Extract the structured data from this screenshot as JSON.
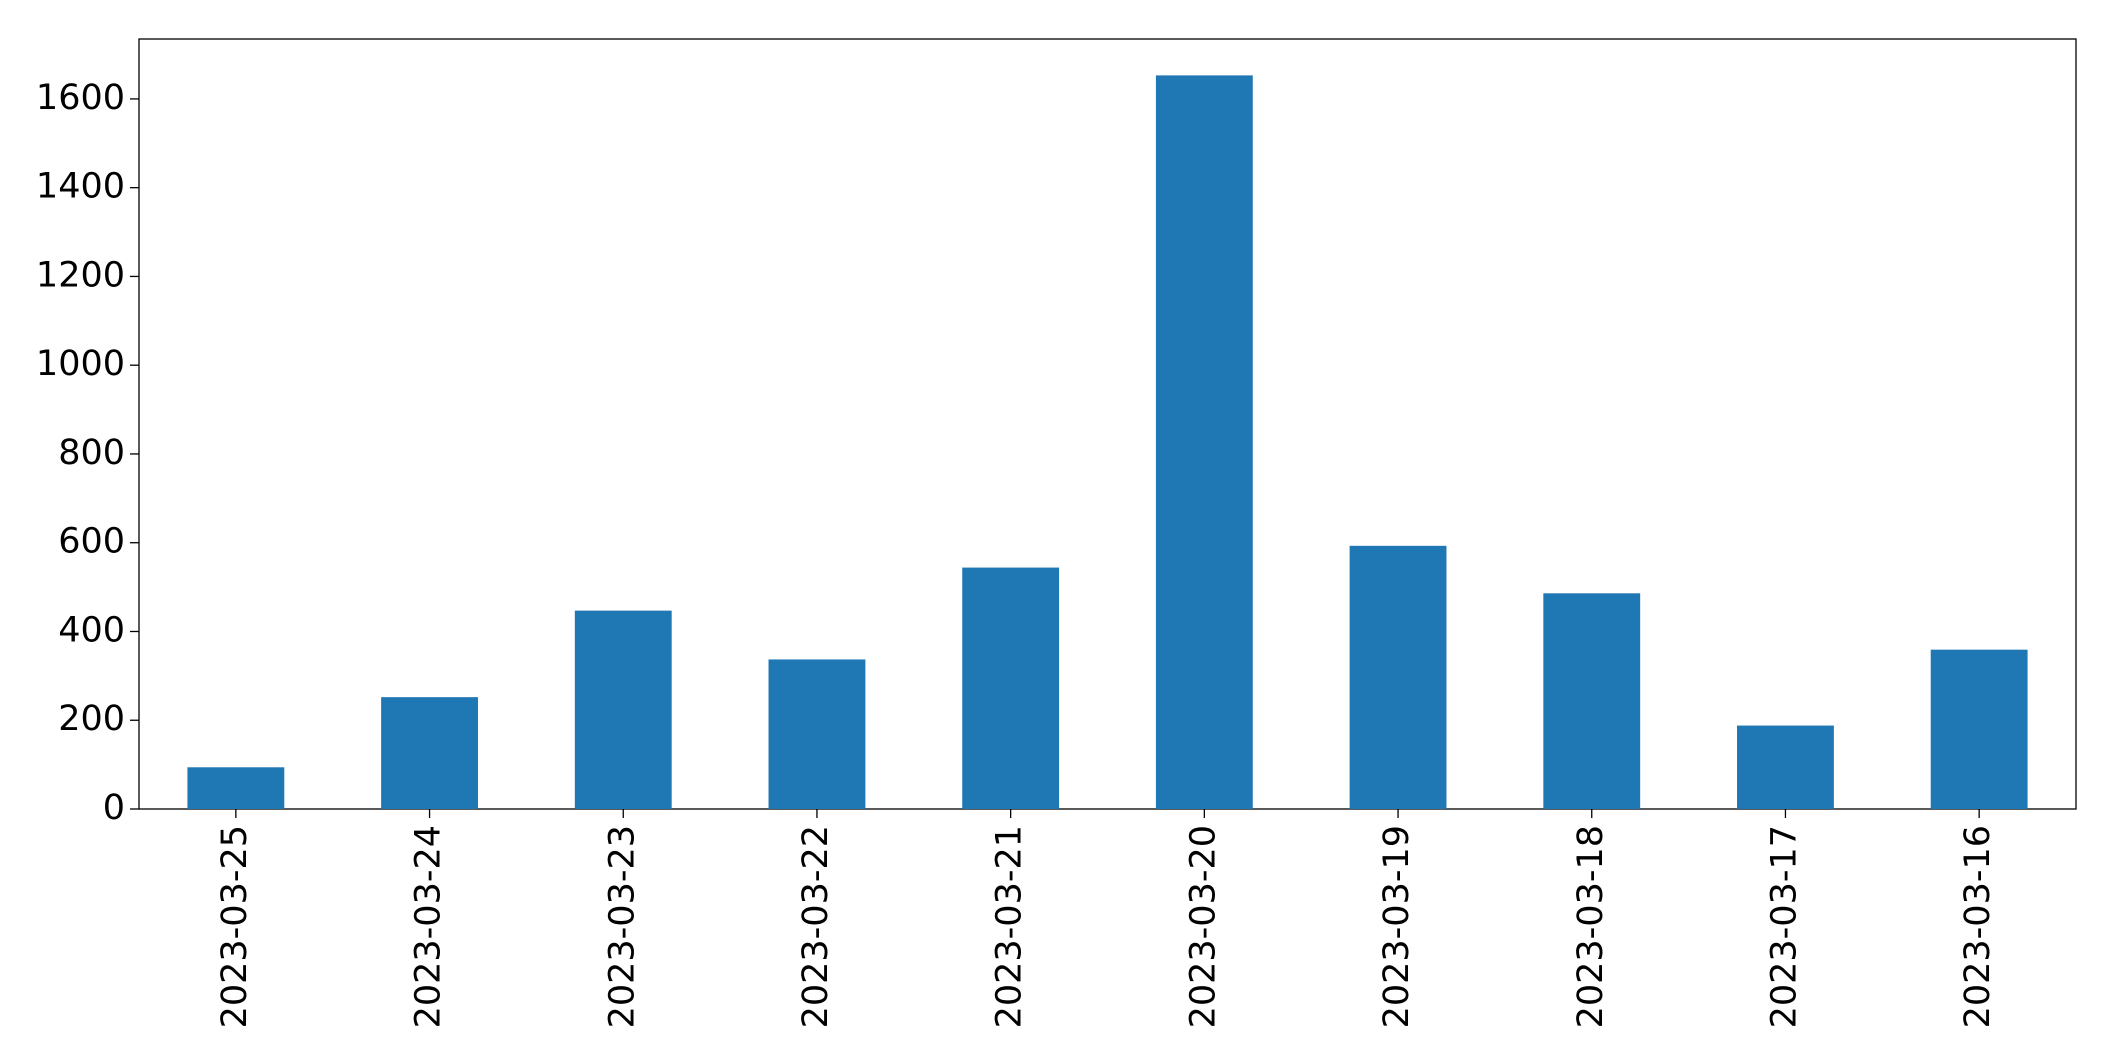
{
  "chart_data": {
    "type": "bar",
    "categories": [
      "2023-03-25",
      "2023-03-24",
      "2023-03-23",
      "2023-03-22",
      "2023-03-21",
      "2023-03-20",
      "2023-03-19",
      "2023-03-18",
      "2023-03-17",
      "2023-03-16"
    ],
    "values": [
      94,
      252,
      447,
      337,
      544,
      1653,
      593,
      486,
      188,
      359
    ],
    "color": "#1f77b4",
    "ylim": [
      0,
      1735
    ],
    "yticks": [
      0,
      200,
      400,
      600,
      800,
      1000,
      1200,
      1400,
      1600
    ],
    "grid": false
  }
}
